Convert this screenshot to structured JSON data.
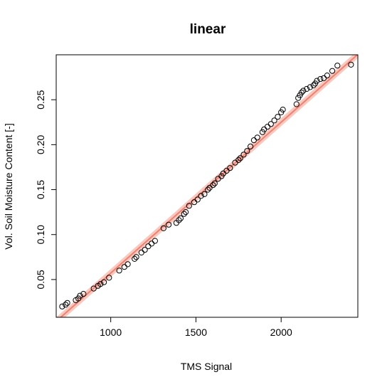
{
  "chart_data": {
    "type": "scatter",
    "title": "linear",
    "xlabel": "TMS Signal",
    "ylabel": "Vol. Soil Moisture Content [-]",
    "xlim": [
      680,
      2450
    ],
    "ylim": [
      0.008,
      0.3
    ],
    "xticks": [
      1000,
      1500,
      2000
    ],
    "xtick_labels": [
      "1000",
      "1500",
      "2000"
    ],
    "yticks": [
      0.05,
      0.1,
      0.15,
      0.2,
      0.25
    ],
    "ytick_labels": [
      "0.05",
      "0.10",
      "0.15",
      "0.20",
      "0.25"
    ],
    "grid": false,
    "legend": "none",
    "colors": {
      "points": "#000000",
      "fit_line": "#f08070",
      "fit_band": "#f8c0b4"
    },
    "fit": {
      "kind": "linear",
      "x": [
        680,
        2450
      ],
      "y": [
        0.0035,
        0.3005
      ],
      "band_halfwidth": 0.0045
    },
    "series": [
      {
        "values": [
          [
            715,
            0.02
          ],
          [
            735,
            0.022
          ],
          [
            745,
            0.024
          ],
          [
            795,
            0.027
          ],
          [
            810,
            0.029
          ],
          [
            820,
            0.032
          ],
          [
            840,
            0.034
          ],
          [
            900,
            0.04
          ],
          [
            925,
            0.043
          ],
          [
            940,
            0.045
          ],
          [
            960,
            0.047
          ],
          [
            990,
            0.052
          ],
          [
            1050,
            0.06
          ],
          [
            1080,
            0.064
          ],
          [
            1100,
            0.067
          ],
          [
            1140,
            0.073
          ],
          [
            1150,
            0.075
          ],
          [
            1180,
            0.08
          ],
          [
            1200,
            0.083
          ],
          [
            1220,
            0.087
          ],
          [
            1240,
            0.09
          ],
          [
            1260,
            0.093
          ],
          [
            1310,
            0.107
          ],
          [
            1340,
            0.111
          ],
          [
            1385,
            0.113
          ],
          [
            1400,
            0.116
          ],
          [
            1410,
            0.118
          ],
          [
            1430,
            0.123
          ],
          [
            1440,
            0.125
          ],
          [
            1460,
            0.132
          ],
          [
            1490,
            0.136
          ],
          [
            1510,
            0.139
          ],
          [
            1530,
            0.143
          ],
          [
            1550,
            0.145
          ],
          [
            1570,
            0.15
          ],
          [
            1580,
            0.152
          ],
          [
            1600,
            0.155
          ],
          [
            1610,
            0.157
          ],
          [
            1630,
            0.162
          ],
          [
            1650,
            0.165
          ],
          [
            1660,
            0.168
          ],
          [
            1680,
            0.171
          ],
          [
            1700,
            0.174
          ],
          [
            1730,
            0.18
          ],
          [
            1750,
            0.183
          ],
          [
            1760,
            0.185
          ],
          [
            1780,
            0.189
          ],
          [
            1800,
            0.193
          ],
          [
            1820,
            0.198
          ],
          [
            1840,
            0.205
          ],
          [
            1860,
            0.208
          ],
          [
            1890,
            0.214
          ],
          [
            1900,
            0.217
          ],
          [
            1920,
            0.22
          ],
          [
            1940,
            0.223
          ],
          [
            1960,
            0.227
          ],
          [
            1980,
            0.231
          ],
          [
            2000,
            0.236
          ],
          [
            2010,
            0.239
          ],
          [
            2090,
            0.245
          ],
          [
            2100,
            0.252
          ],
          [
            2110,
            0.255
          ],
          [
            2120,
            0.258
          ],
          [
            2130,
            0.26
          ],
          [
            2150,
            0.262
          ],
          [
            2170,
            0.264
          ],
          [
            2190,
            0.266
          ],
          [
            2200,
            0.268
          ],
          [
            2210,
            0.271
          ],
          [
            2230,
            0.273
          ],
          [
            2250,
            0.274
          ],
          [
            2270,
            0.277
          ],
          [
            2300,
            0.282
          ],
          [
            2330,
            0.288
          ],
          [
            2410,
            0.289
          ]
        ]
      }
    ]
  }
}
